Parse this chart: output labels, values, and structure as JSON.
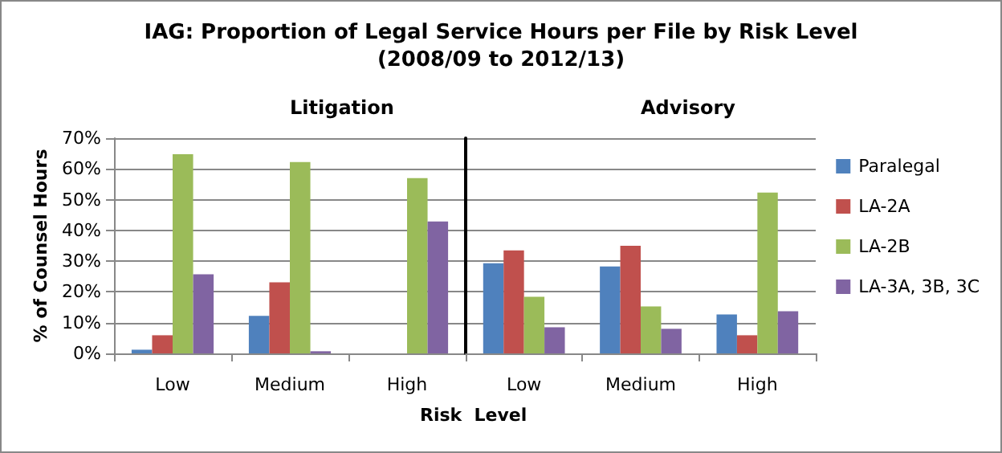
{
  "chart_data": [
    {
      "type": "bar",
      "title": "IAG: Proportion of Legal Service Hours per File by Risk Level\n(2008/09 to 2012/13)",
      "subtitle": "Litigation",
      "xlabel": "Risk  Level",
      "ylabel": "% of Counsel Hours",
      "categories": [
        "Low",
        "Medium",
        "High"
      ],
      "series": [
        {
          "color": "#4f81bd",
          "values": [
            1.2,
            12.2,
            0
          ]
        },
        {
          "color": "#c0504d",
          "values": [
            5.9,
            23.1,
            0
          ]
        },
        {
          "color": "#9bbb59",
          "values": [
            64.8,
            62.2,
            57
          ]
        },
        {
          "color": "#8064a2",
          "values": [
            25.7,
            0.7,
            42.9
          ]
        }
      ],
      "ylim": [
        0,
        70
      ],
      "yticks": [
        {
          "value": 0,
          "label": "0%"
        },
        {
          "value": 10,
          "label": "10%"
        },
        {
          "value": 20,
          "label": "20%"
        },
        {
          "value": 30,
          "label": "30%"
        },
        {
          "value": 40,
          "label": "40%"
        },
        {
          "value": 50,
          "label": "50%"
        },
        {
          "value": 60,
          "label": "60%"
        },
        {
          "value": 70,
          "label": "70%"
        }
      ],
      "grid": "y"
    },
    {
      "type": "bar",
      "subtitle": "Advisory",
      "categories": [
        "Low",
        "Medium",
        "High"
      ],
      "series": [
        {
          "name": "Paralegal",
          "color": "#4f81bd",
          "values": [
            29.3,
            28.3,
            12.7
          ]
        },
        {
          "name": "LA-2A",
          "color": "#c0504d",
          "values": [
            33.5,
            35,
            5.9
          ]
        },
        {
          "name": "LA-2B",
          "color": "#9bbb59",
          "values": [
            18.4,
            15.3,
            52.3
          ]
        },
        {
          "name": "LA-3A, 3B, 3C",
          "color": "#8064a2",
          "values": [
            8.5,
            8,
            13.7
          ]
        }
      ],
      "ylim": [
        0,
        70
      ],
      "yticks": [
        0,
        10,
        20,
        30,
        40,
        50,
        60,
        70
      ],
      "tick_labels": "x",
      "grid": "y",
      "legend": "right"
    }
  ]
}
